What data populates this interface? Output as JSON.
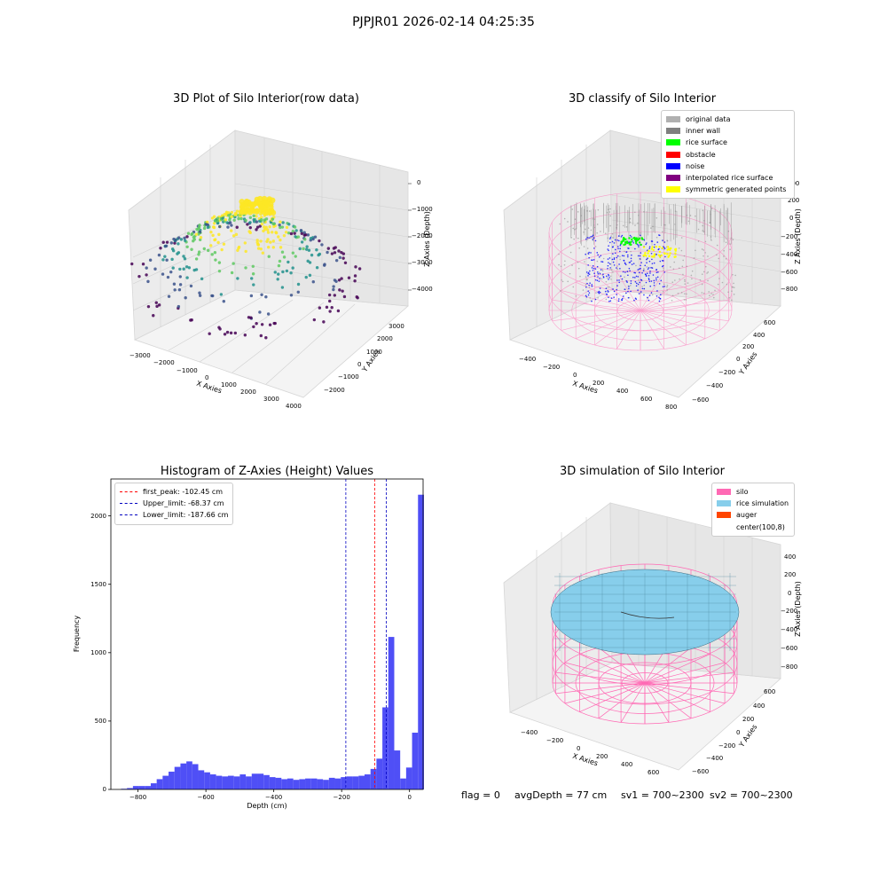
{
  "figure": {
    "title": "PJPJR01 2026-02-14 04:25:35",
    "status": {
      "flag": "flag = 0",
      "avg_depth": "avgDepth = 77 cm",
      "sv1": "sv1 = 700~2300",
      "sv2": "sv2 = 700~2300"
    }
  },
  "chart_data": [
    {
      "type": "scatter",
      "projection": "3d",
      "title": "3D Plot of Silo Interior(row data)",
      "xlabel": "X Axies",
      "ylabel": "Y Axies",
      "zlabel": "Z Axies (Depth)",
      "x_ticks": [
        "−3000",
        "−2000",
        "−1000",
        "0",
        "1000",
        "2000",
        "3000",
        "4000"
      ],
      "y_ticks": [
        "−2000",
        "−1000",
        "0",
        "1000",
        "2000",
        "3000"
      ],
      "z_ticks": [
        "0",
        "−1000",
        "−2000",
        "−3000",
        "−4000"
      ],
      "colormap": [
        "#440154",
        "#3b528b",
        "#21918c",
        "#5ec962",
        "#fde725"
      ],
      "grid": true
    },
    {
      "type": "scatter",
      "projection": "3d",
      "title": "3D classify of Silo Interior",
      "xlabel": "X Axies",
      "ylabel": "Y Axies",
      "zlabel": "Z Axies (Depth)",
      "x_ticks": [
        "−400",
        "−200",
        "0",
        "200",
        "400",
        "600",
        "800"
      ],
      "y_ticks": [
        "−600",
        "−400",
        "−200",
        "0",
        "200",
        "400",
        "600"
      ],
      "z_ticks": [
        "400",
        "200",
        "0",
        "−200",
        "−400",
        "−600",
        "−800"
      ],
      "legend_position": "top-right",
      "legend": [
        {
          "label": "original data",
          "color": "#b0b0b0"
        },
        {
          "label": "inner wall",
          "color": "#808080"
        },
        {
          "label": "rice surface",
          "color": "#00ff00"
        },
        {
          "label": "obstacle",
          "color": "#ff0000"
        },
        {
          "label": "noise",
          "color": "#0000ff"
        },
        {
          "label": "interpolated rice surface",
          "color": "#800080"
        },
        {
          "label": "symmetric generated points",
          "color": "#ffff00"
        }
      ],
      "grid": true
    },
    {
      "type": "bar",
      "title": "Histogram of Z-Axies (Height) Values",
      "xlabel": "Depth (cm)",
      "ylabel": "Frequency",
      "xlim": [
        -880,
        40
      ],
      "ylim": [
        0,
        2270
      ],
      "x_ticks": [
        "−800",
        "−600",
        "−400",
        "−200",
        "0"
      ],
      "x_tick_values": [
        -800,
        -600,
        -400,
        -200,
        0
      ],
      "y_ticks": [
        "0",
        "500",
        "1000",
        "1500",
        "2000"
      ],
      "y_tick_values": [
        0,
        500,
        1000,
        1500,
        2000
      ],
      "bar_color": "#4646f5",
      "bin_width": 17.5,
      "bin_start": -850,
      "values": [
        5,
        10,
        25,
        25,
        25,
        45,
        75,
        100,
        130,
        165,
        190,
        205,
        185,
        140,
        125,
        110,
        100,
        95,
        100,
        95,
        110,
        95,
        115,
        115,
        105,
        90,
        85,
        75,
        80,
        70,
        75,
        80,
        80,
        75,
        70,
        85,
        80,
        90,
        95,
        95,
        100,
        110,
        150,
        225,
        600,
        1115,
        285,
        80,
        160,
        415,
        2155
      ],
      "vlines": [
        {
          "label": "first_peak: -102.45 cm",
          "x": -102.45,
          "color": "#ff0000"
        },
        {
          "label": "Upper_limit: -68.37 cm",
          "x": -68.37,
          "color": "#0000c0"
        },
        {
          "label": "Lower_limit: -187.66 cm",
          "x": -187.66,
          "color": "#0000c0"
        }
      ],
      "legend_position": "top-left",
      "grid": false
    },
    {
      "type": "area",
      "projection": "3d",
      "title": "3D simulation of Silo Interior",
      "xlabel": "X Axies",
      "ylabel": "Y Axies",
      "zlabel": "Z Axies (Depth)",
      "x_ticks": [
        "−400",
        "−200",
        "0",
        "200",
        "400",
        "600"
      ],
      "y_ticks": [
        "−600",
        "−400",
        "−200",
        "0",
        "200",
        "400",
        "600"
      ],
      "z_ticks": [
        "400",
        "200",
        "0",
        "−200",
        "−400",
        "−600",
        "−800"
      ],
      "legend_position": "top-right",
      "legend": [
        {
          "label": "silo",
          "color": "#ff69b4"
        },
        {
          "label": "rice simulation",
          "color": "#87ceeb"
        },
        {
          "label": "auger",
          "color": "#ff4500"
        },
        {
          "label": "center(100,8)",
          "color": ""
        }
      ],
      "grid": true
    }
  ]
}
